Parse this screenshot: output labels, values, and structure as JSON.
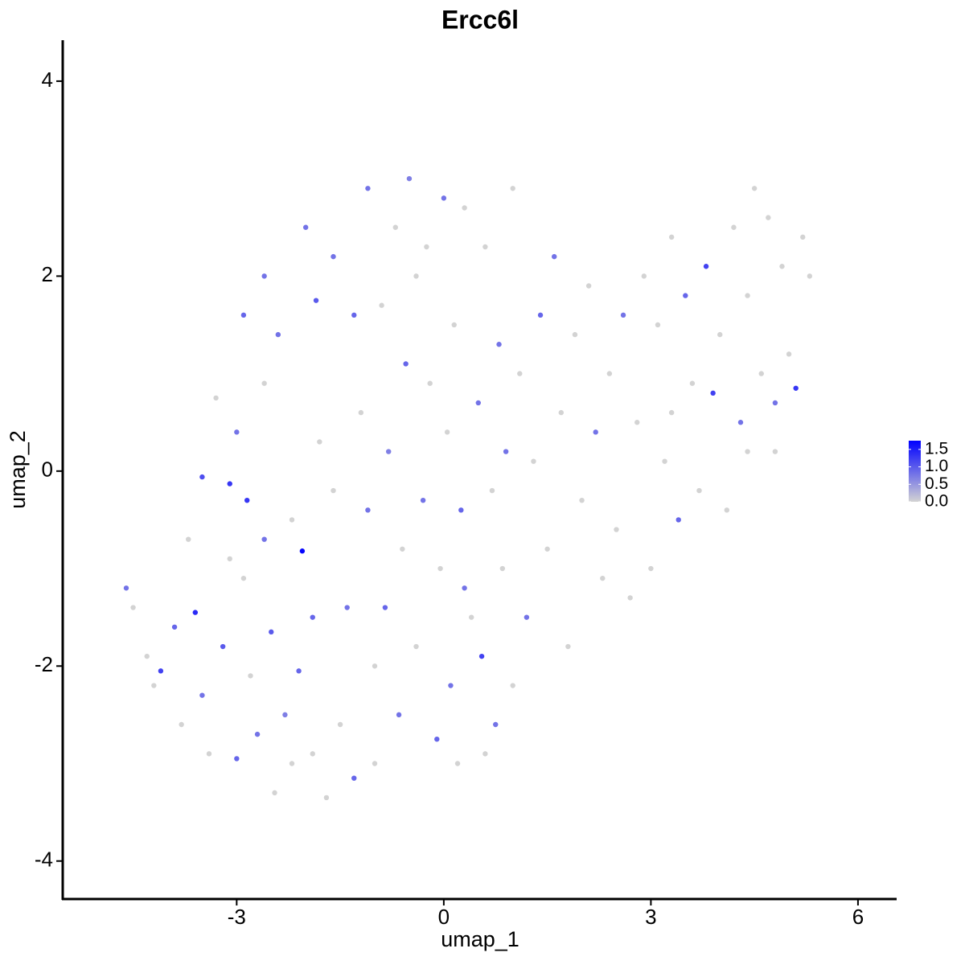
{
  "chart_data": {
    "type": "scatter",
    "title": "Ercc6l",
    "x_label": "umap_1",
    "y_label": "umap_2",
    "xlim": [
      -5.52,
      6.56
    ],
    "ylim": [
      -4.39,
      4.42
    ],
    "xticks": [
      -3,
      0,
      3,
      6
    ],
    "yticks": [
      -4,
      -2,
      0,
      2,
      4
    ],
    "grid": false,
    "color_low": "#d3d3d3",
    "color_high": "#0000ff",
    "colorlim": [
      0,
      1.75
    ],
    "colorticks": [
      {
        "value": 0,
        "label": "0.0"
      },
      {
        "value": 0.5,
        "label": "0.5"
      },
      {
        "value": 1,
        "label": "1.0"
      },
      {
        "value": 1.5,
        "label": "1.5"
      }
    ],
    "x": [
      -4.6,
      -4.5,
      -4.2,
      -4.1,
      -3.9,
      -3.8,
      -3.6,
      -3.5,
      -3.5,
      -3.4,
      -3.2,
      -3.1,
      -3.0,
      -3.0,
      -2.9,
      -2.85,
      -2.8,
      -2.7,
      -2.6,
      -2.5,
      -2.45,
      -2.4,
      -2.3,
      -2.2,
      -2.1,
      -2.05,
      -2.0,
      -1.9,
      -1.9,
      -1.85,
      -1.8,
      -1.7,
      -1.6,
      -1.5,
      -1.4,
      -1.3,
      -1.3,
      -1.2,
      -1.1,
      -1.1,
      -1.0,
      -0.9,
      -0.85,
      -0.8,
      -0.7,
      -0.65,
      -0.6,
      -0.55,
      -0.5,
      -0.4,
      -0.3,
      -0.25,
      -0.2,
      -0.1,
      -0.05,
      0.0,
      0.05,
      0.1,
      0.15,
      0.2,
      0.25,
      0.3,
      0.4,
      0.5,
      0.55,
      0.6,
      0.7,
      0.75,
      0.8,
      0.85,
      0.9,
      1.0,
      1.0,
      1.1,
      1.2,
      1.3,
      1.4,
      1.5,
      1.6,
      1.7,
      1.8,
      1.9,
      2.0,
      2.1,
      2.2,
      2.3,
      2.4,
      2.5,
      2.6,
      2.7,
      2.8,
      2.9,
      3.0,
      3.1,
      3.2,
      3.3,
      3.4,
      3.5,
      3.6,
      3.7,
      3.8,
      3.9,
      4.0,
      4.1,
      4.2,
      4.3,
      4.4,
      4.5,
      4.6,
      4.7,
      4.8,
      4.9,
      5.0,
      5.1,
      5.2,
      5.3,
      4.8,
      4.4,
      3.3,
      -3.3,
      -3.1,
      -2.6,
      -3.7,
      -4.3,
      -2.2,
      -1.6,
      -2.6,
      -2.9,
      -0.4,
      0.3,
      -1.0,
      0.6
    ],
    "y": [
      -1.2,
      -1.4,
      -2.2,
      -2.05,
      -1.6,
      -2.6,
      -1.45,
      -2.3,
      -0.06,
      -2.9,
      -1.8,
      -0.13,
      -2.95,
      0.4,
      -1.1,
      -0.3,
      -2.1,
      -2.7,
      0.9,
      -1.65,
      -3.3,
      1.4,
      -2.5,
      -0.5,
      -2.05,
      -0.82,
      2.5,
      -2.9,
      -1.5,
      1.75,
      0.3,
      -3.35,
      2.2,
      -2.6,
      -1.4,
      1.6,
      -3.15,
      0.6,
      -0.4,
      2.9,
      -2.0,
      1.7,
      -1.4,
      0.2,
      2.5,
      -2.5,
      -0.8,
      1.1,
      3.0,
      -1.8,
      -0.3,
      2.3,
      0.9,
      -2.75,
      -1.0,
      2.8,
      0.4,
      -2.2,
      1.5,
      -3.0,
      -0.4,
      2.7,
      -1.5,
      0.7,
      -1.9,
      2.3,
      -0.2,
      -2.6,
      1.3,
      -1.0,
      0.2,
      2.9,
      -2.2,
      1.0,
      -1.5,
      0.1,
      1.6,
      -0.8,
      2.2,
      0.6,
      -1.8,
      1.4,
      -0.3,
      1.9,
      0.4,
      -1.1,
      1.0,
      -0.6,
      1.6,
      -1.3,
      0.5,
      2.0,
      -1.0,
      1.5,
      0.1,
      2.4,
      -0.5,
      1.8,
      0.9,
      -0.2,
      2.1,
      0.8,
      1.4,
      -0.4,
      2.5,
      0.5,
      1.8,
      2.9,
      1.0,
      2.6,
      0.2,
      2.1,
      1.2,
      0.85,
      2.4,
      2.0,
      0.7,
      0.2,
      0.6,
      0.75,
      -0.9,
      -0.7,
      -0.7,
      -1.9,
      -3.0,
      -0.2,
      2.0,
      1.6,
      2.0,
      -1.2,
      -3.0,
      -2.9
    ],
    "expression": [
      0.8,
      0,
      0,
      1.2,
      0.9,
      0,
      1.4,
      0.8,
      1.1,
      0,
      1.0,
      1.3,
      0.9,
      0.8,
      0,
      1.3,
      0,
      0.8,
      0,
      1.0,
      0,
      0.8,
      0.7,
      0,
      0.9,
      1.7,
      0.8,
      0,
      0.9,
      1.0,
      0,
      0,
      0.8,
      0,
      0.8,
      0.9,
      0.9,
      0,
      0.8,
      0.8,
      0,
      0,
      0.9,
      0.7,
      0,
      0.8,
      0,
      0.9,
      0.7,
      0,
      0.8,
      0,
      0,
      0.9,
      0,
      0.8,
      0,
      0.8,
      0,
      0,
      0.9,
      0,
      0,
      0.8,
      1.2,
      0,
      0,
      0.8,
      0.8,
      0,
      0.8,
      0,
      0,
      0,
      0.8,
      0,
      0.9,
      0,
      0.8,
      0,
      0,
      0,
      0,
      0,
      0.8,
      0,
      0,
      0,
      0.8,
      0,
      0,
      0,
      0,
      0,
      0,
      0,
      0.9,
      0.9,
      0,
      0,
      1.2,
      1.2,
      0,
      0,
      0,
      0.8,
      0,
      0,
      0,
      0,
      0,
      0,
      0,
      1.3,
      0,
      0,
      0.8,
      0,
      0,
      0,
      0,
      0.8,
      0,
      0,
      0,
      0,
      0.8,
      0.9,
      0,
      0.8,
      0,
      0
    ]
  }
}
